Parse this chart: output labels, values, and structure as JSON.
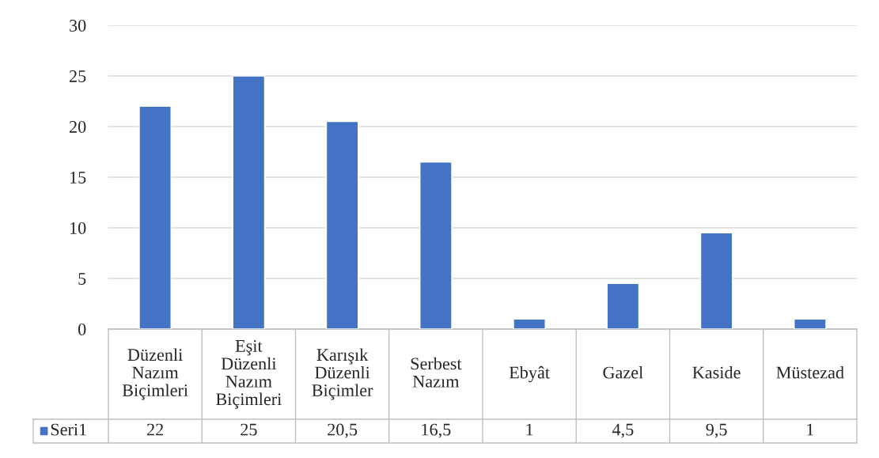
{
  "chart_data": {
    "type": "bar",
    "categories": [
      "Düzenli Nazım Biçimleri",
      "Eşit Düzenli Nazım Biçimleri",
      "Karışık Düzenli Biçimler",
      "Serbest Nazım",
      "Ebyât",
      "Gazel",
      "Kaside",
      "Müstezad"
    ],
    "series": [
      {
        "name": "Seri1",
        "color": "#4472c4",
        "values": [
          22,
          25,
          20.5,
          16.5,
          1,
          4.5,
          9.5,
          1
        ],
        "value_labels": [
          "22",
          "25",
          "20,5",
          "16,5",
          "1",
          "4,5",
          "9,5",
          "1"
        ]
      }
    ],
    "ylim": [
      0,
      30
    ],
    "yticks": [
      0,
      5,
      10,
      15,
      20,
      25,
      30
    ],
    "grid": "y",
    "legend": "bottom"
  }
}
